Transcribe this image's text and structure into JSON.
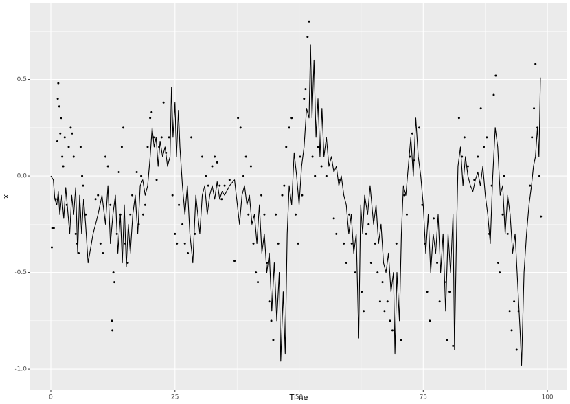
{
  "chart_data": {
    "type": "line-point",
    "xlabel": "Time",
    "ylabel": "x",
    "xlim": [
      -4.15,
      104.0
    ],
    "ylim": [
      -1.11,
      0.897
    ],
    "xticks": [
      0,
      25,
      50,
      75,
      100
    ],
    "yticks": [
      {
        "value": -1,
        "label": "-1.0"
      },
      -0.5,
      {
        "value": 0,
        "label": "0.0"
      },
      0.5
    ],
    "xminor": [
      12.5,
      37.5,
      62.5,
      87.5
    ],
    "yminor": [
      -0.75,
      -0.25,
      0.25,
      0.75
    ],
    "grid": true,
    "background": "#ebebeb",
    "series": [
      {
        "kind": "line",
        "color": "#000000",
        "x": [
          0,
          0.5,
          0.8,
          1.2,
          1.5,
          1.8,
          2.2,
          2.6,
          3,
          3.4,
          3.8,
          4.2,
          4.6,
          5,
          5.4,
          5.8,
          6.2,
          6.6,
          7,
          7.5,
          8.5,
          9.5,
          10.3,
          11,
          11.5,
          12,
          12.5,
          13,
          13.5,
          14,
          14.4,
          14.8,
          15.2,
          15.6,
          16,
          16.5,
          17,
          17.5,
          18,
          18.5,
          19,
          19.5,
          20,
          20.4,
          20.8,
          21.2,
          21.6,
          22,
          22.5,
          23,
          23.5,
          24,
          24.3,
          24.6,
          25,
          25.3,
          25.7,
          26,
          26.5,
          27,
          27.5,
          28,
          28.6,
          29.2,
          30,
          30.5,
          31,
          31.5,
          32,
          32.5,
          33,
          33.5,
          34,
          34.5,
          35,
          36,
          37,
          38,
          38.5,
          39,
          39.5,
          40,
          40.5,
          41,
          41.5,
          42,
          42.5,
          43,
          43.5,
          44,
          44.5,
          45,
          45.5,
          46,
          46.3,
          46.8,
          47.2,
          47.6,
          48,
          48.5,
          49,
          49.5,
          50,
          50.5,
          51,
          51.5,
          52,
          52.3,
          52.6,
          53,
          53.4,
          53.8,
          54.2,
          54.6,
          55,
          55.5,
          56,
          56.5,
          57,
          57.5,
          58,
          58.5,
          59,
          59.5,
          60,
          60.5,
          61,
          61.5,
          62,
          62.4,
          62.8,
          63.2,
          63.8,
          64.3,
          65,
          65.5,
          66,
          66.5,
          67,
          67.5,
          68,
          68.5,
          69,
          69.3,
          69.7,
          70.2,
          70.6,
          71,
          71.5,
          72,
          72.5,
          73,
          73.5,
          74,
          74.5,
          75,
          75.5,
          76,
          76.5,
          77,
          77.5,
          78,
          78.5,
          79,
          79.5,
          80,
          80.5,
          81,
          81.3,
          81.7,
          82,
          82.5,
          83,
          83.5,
          84,
          84.5,
          85,
          85.5,
          86,
          86.5,
          87,
          87.5,
          88,
          88.5,
          89,
          89.5,
          90,
          90.5,
          91,
          91.5,
          92,
          92.5,
          93,
          93.5,
          94,
          94.5,
          94.8,
          95.3,
          95.8,
          96.3,
          96.8,
          97.2,
          97.6,
          98,
          98.3,
          98.6
        ],
        "values": [
          0,
          -0.02,
          -0.12,
          -0.15,
          -0.08,
          -0.2,
          -0.1,
          -0.22,
          -0.06,
          -0.18,
          -0.3,
          -0.1,
          -0.2,
          -0.06,
          -0.4,
          -0.1,
          -0.3,
          -0.12,
          -0.25,
          -0.45,
          -0.3,
          -0.2,
          -0.1,
          -0.25,
          -0.05,
          -0.35,
          -0.2,
          -0.1,
          -0.4,
          -0.2,
          -0.45,
          -0.15,
          -0.47,
          -0.25,
          -0.4,
          -0.2,
          -0.1,
          -0.3,
          -0.05,
          -0.02,
          -0.1,
          -0.05,
          0.1,
          0.25,
          0.15,
          0.2,
          0.05,
          0.18,
          0.1,
          0.15,
          0.05,
          0.1,
          0.46,
          0.2,
          0.38,
          0.1,
          0.34,
          0.15,
          -0.05,
          -0.2,
          -0.05,
          -0.3,
          -0.45,
          -0.1,
          -0.3,
          -0.1,
          -0.05,
          -0.2,
          -0.1,
          -0.05,
          -0.12,
          -0.03,
          -0.12,
          -0.08,
          -0.1,
          -0.05,
          -0.02,
          -0.25,
          -0.1,
          -0.05,
          -0.15,
          -0.1,
          -0.25,
          -0.2,
          -0.35,
          -0.15,
          -0.4,
          -0.3,
          -0.5,
          -0.4,
          -0.7,
          -0.45,
          -0.75,
          -0.5,
          -0.96,
          -0.6,
          -0.92,
          -0.3,
          -0.05,
          -0.15,
          0.12,
          0,
          -0.15,
          0.05,
          0.15,
          0.35,
          0.3,
          0.68,
          0.3,
          0.6,
          0.2,
          0.4,
          0.1,
          0.35,
          0.1,
          0.2,
          0.05,
          0.1,
          0.02,
          0.05,
          -0.05,
          0,
          -0.1,
          -0.15,
          -0.3,
          -0.2,
          -0.4,
          -0.3,
          -0.84,
          -0.15,
          -0.3,
          -0.1,
          -0.2,
          -0.05,
          -0.25,
          -0.15,
          -0.35,
          -0.25,
          -0.45,
          -0.5,
          -0.4,
          -0.6,
          -0.5,
          -0.92,
          -0.5,
          -0.75,
          -0.3,
          -0.05,
          -0.1,
          0.05,
          0.2,
          0,
          0.3,
          0.1,
          0,
          -0.15,
          -0.4,
          -0.2,
          -0.5,
          -0.3,
          -0.4,
          -0.2,
          -0.5,
          -0.3,
          -0.7,
          -0.3,
          -0.5,
          -0.2,
          -0.9,
          -0.3,
          0.05,
          0.15,
          -0.05,
          0.1,
          0,
          -0.05,
          -0.08,
          -0.02,
          0.02,
          -0.05,
          0.05,
          -0.1,
          -0.2,
          -0.35,
          0,
          0.25,
          0.15,
          -0.1,
          -0.05,
          -0.3,
          -0.1,
          -0.2,
          -0.4,
          -0.3,
          -0.55,
          -0.8,
          -0.98,
          -0.5,
          -0.3,
          -0.15,
          -0.05,
          0.05,
          0.1,
          0.25,
          0.1,
          0.51
        ]
      },
      {
        "kind": "point",
        "color": "#000000",
        "x": [
          0.2,
          0.3,
          0.6,
          1,
          1.3,
          1.4,
          1.5,
          1.7,
          1.9,
          2.1,
          2.3,
          2.5,
          2.8,
          3.2,
          3.6,
          4,
          4.3,
          4.6,
          5,
          5.3,
          5.6,
          6,
          6.3,
          6.5,
          7,
          9,
          9.5,
          10,
          10.5,
          11,
          11.5,
          12,
          12.3,
          12.4,
          12.6,
          12.8,
          13.3,
          13.7,
          14,
          14.3,
          14.6,
          15,
          15.5,
          16,
          16.4,
          17.3,
          17.7,
          18.2,
          18.6,
          19,
          19.5,
          20,
          20.3,
          20.7,
          21.3,
          21.8,
          22.3,
          22.7,
          23.2,
          23.8,
          24.5,
          25,
          25.4,
          25.8,
          26.5,
          27,
          27.6,
          28.3,
          29,
          30.5,
          31.2,
          31.7,
          32.5,
          33,
          33.5,
          34,
          34.4,
          35,
          36,
          37,
          37.7,
          38.2,
          38.8,
          39.3,
          39.8,
          40.3,
          40.8,
          41.3,
          41.7,
          42.4,
          43,
          43.5,
          44,
          44.4,
          44.8,
          45.3,
          45.8,
          46.6,
          47,
          47.4,
          48,
          48.5,
          49.3,
          49.8,
          50.2,
          50.6,
          51,
          51.3,
          51.7,
          52,
          52.7,
          53.2,
          53.8,
          54.5,
          55.5,
          57,
          57.5,
          58,
          59,
          59.5,
          60.1,
          60.6,
          61.3,
          62.6,
          63,
          63.5,
          64,
          64.5,
          65.3,
          65.8,
          66.3,
          66.8,
          67.2,
          67.8,
          68.3,
          68.8,
          69.6,
          70.5,
          71.2,
          71.7,
          72.3,
          72.8,
          73.2,
          74.2,
          74.8,
          75.3,
          75.8,
          76.3,
          77.1,
          77.8,
          78.3,
          79.3,
          79.8,
          80.3,
          81,
          82.2,
          82.8,
          83.3,
          84,
          85.3,
          86,
          86.6,
          87.2,
          87.8,
          88.3,
          88.8,
          89.2,
          89.6,
          90.1,
          90.4,
          91,
          91.3,
          92,
          92.4,
          92.8,
          93.3,
          93.8,
          94.2,
          96.5,
          96.9,
          97.3,
          97.6,
          98,
          98.4,
          98.7
        ],
        "values": [
          -0.37,
          -0.27,
          -0.27,
          -0.12,
          0.18,
          0.4,
          0.48,
          0.36,
          0.22,
          0.3,
          0.1,
          0.05,
          0.2,
          -0.15,
          0.15,
          0.25,
          0.22,
          0.1,
          -0.3,
          -0.35,
          -0.4,
          0.15,
          0,
          -0.05,
          -0.2,
          -0.12,
          -0.1,
          -0.35,
          -0.4,
          0.1,
          0.05,
          -0.15,
          -0.75,
          -0.8,
          -0.5,
          -0.55,
          -0.3,
          0.02,
          -0.2,
          0.15,
          0.25,
          -0.35,
          -0.45,
          -0.2,
          -0.1,
          0.02,
          -0.25,
          0,
          -0.2,
          -0.15,
          0.15,
          0.3,
          0.33,
          0.2,
          -0.02,
          0.15,
          0.2,
          0.38,
          0.12,
          0.2,
          -0.1,
          -0.3,
          -0.35,
          -0.15,
          -0.25,
          -0.35,
          -0.4,
          0.2,
          -0.3,
          0.1,
          0,
          -0.05,
          0.05,
          0.1,
          0.07,
          -0.05,
          -0.12,
          -0.05,
          -0.02,
          -0.44,
          0.3,
          0.25,
          0,
          0.1,
          -0.2,
          0.05,
          -0.35,
          -0.5,
          -0.55,
          -0.1,
          -0.2,
          -0.45,
          -0.65,
          -0.75,
          -0.85,
          -0.2,
          -0.35,
          -0.1,
          -0.05,
          0.15,
          0.25,
          0.3,
          -0.2,
          -0.35,
          0.1,
          -0.1,
          0.4,
          0.45,
          0.72,
          0.8,
          0.1,
          0,
          0.15,
          0.05,
          0,
          -0.22,
          -0.3,
          -0.02,
          -0.35,
          -0.45,
          -0.2,
          -0.35,
          -0.5,
          -0.6,
          -0.7,
          -0.3,
          -0.25,
          -0.45,
          -0.35,
          -0.5,
          -0.65,
          -0.55,
          -0.7,
          -0.65,
          -0.75,
          -0.8,
          -0.35,
          -0.85,
          -0.1,
          -0.2,
          0.1,
          0.22,
          0.08,
          0.25,
          -0.15,
          -0.35,
          -0.6,
          -0.75,
          -0.22,
          -0.45,
          -0.65,
          -0.55,
          -0.85,
          -0.6,
          -0.88,
          0.3,
          0.1,
          0.2,
          0.05,
          -0.02,
          0.1,
          0.35,
          0.15,
          0.2,
          -0.3,
          -0.05,
          0.42,
          0.52,
          -0.45,
          -0.5,
          -0.2,
          0,
          -0.3,
          -0.7,
          -0.8,
          -0.65,
          -0.9,
          -0.7,
          -0.05,
          0.2,
          0.35,
          0.58,
          0.25,
          0,
          -0.21
        ]
      }
    ]
  }
}
